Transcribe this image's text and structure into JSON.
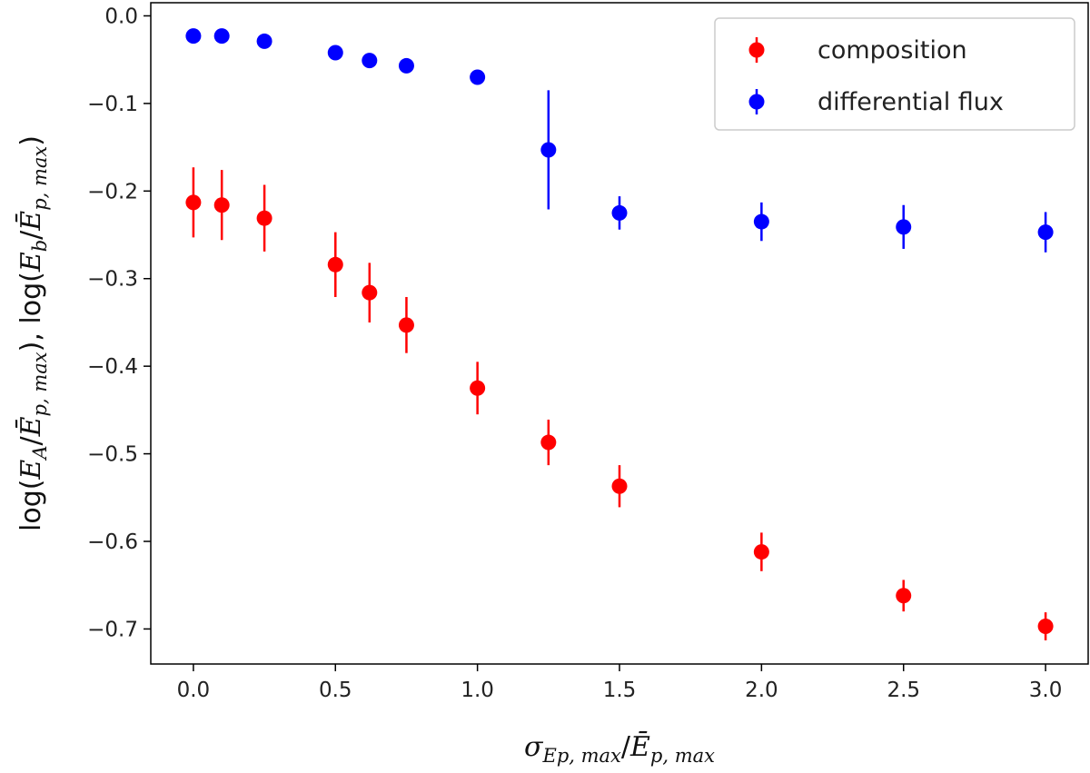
{
  "chart_data": {
    "type": "scatter",
    "x_ticks": [
      0.0,
      0.5,
      1.0,
      1.5,
      2.0,
      2.5,
      3.0
    ],
    "x_tick_labels": [
      "0.0",
      "0.5",
      "1.0",
      "1.5",
      "2.0",
      "2.5",
      "3.0"
    ],
    "y_ticks": [
      0.0,
      -0.1,
      -0.2,
      -0.3,
      -0.4,
      -0.5,
      -0.6,
      -0.7
    ],
    "y_tick_labels": [
      "0.0",
      "−0.1",
      "−0.2",
      "−0.3",
      "−0.4",
      "−0.5",
      "−0.6",
      "−0.7"
    ],
    "xlim": [
      -0.15,
      3.15
    ],
    "ylim": [
      -0.74,
      0.015
    ],
    "xlabel": {
      "sigma": "σ",
      "sub1": "Ep, max",
      "slash": "/",
      "E": "Ē",
      "sub2": "p, max"
    },
    "ylabel": {
      "p1": "log(",
      "E1": "E",
      "s1": "A",
      "slash1": "/",
      "Eb1": "Ē",
      "s2": "p, max",
      "p2": "),  log(",
      "E2": "E",
      "s3": "b",
      "slash2": "/",
      "Eb2": "Ē",
      "s4": "p, max",
      "p3": ")"
    },
    "legend_position": "top-right",
    "series": [
      {
        "name": "composition",
        "color": "#ff0000",
        "x": [
          0.0,
          0.1,
          0.25,
          0.5,
          0.62,
          0.75,
          1.0,
          1.25,
          1.5,
          2.0,
          2.5,
          3.0
        ],
        "y": [
          -0.213,
          -0.216,
          -0.231,
          -0.284,
          -0.316,
          -0.353,
          -0.425,
          -0.487,
          -0.537,
          -0.612,
          -0.662,
          -0.697
        ],
        "err": [
          0.04,
          0.04,
          0.038,
          0.037,
          0.034,
          0.032,
          0.03,
          0.026,
          0.024,
          0.022,
          0.018,
          0.016
        ]
      },
      {
        "name": "differential flux",
        "color": "#0000ff",
        "x": [
          0.0,
          0.1,
          0.25,
          0.5,
          0.62,
          0.75,
          1.0,
          1.25,
          1.5,
          2.0,
          2.5,
          3.0
        ],
        "y": [
          -0.023,
          -0.023,
          -0.029,
          -0.042,
          -0.051,
          -0.057,
          -0.07,
          -0.153,
          -0.225,
          -0.235,
          -0.241,
          -0.247
        ],
        "err": [
          0.004,
          0.004,
          0.004,
          0.005,
          0.005,
          0.005,
          0.006,
          0.068,
          0.019,
          0.022,
          0.025,
          0.023
        ]
      }
    ]
  }
}
